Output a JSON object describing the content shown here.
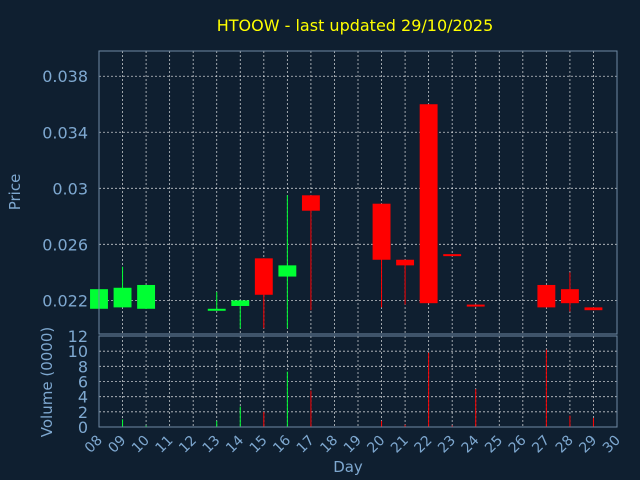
{
  "chart_data": {
    "type": "candlestick",
    "title": "HTOOW - last updated 29/10/2025",
    "xlabel": "Day",
    "ylabel": "Price",
    "volume_label": "Volume (0000)",
    "x_ticks": [
      "08",
      "09",
      "10",
      "11",
      "12",
      "13",
      "14",
      "15",
      "16",
      "17",
      "18",
      "19",
      "20",
      "21",
      "22",
      "23",
      "24",
      "25",
      "26",
      "27",
      "28",
      "29",
      "30"
    ],
    "xlim": [
      8,
      30
    ],
    "price_ylim": [
      0.0196,
      0.0398
    ],
    "price_ticks": [
      "0.022",
      "0.026",
      "0.03",
      "0.034",
      "0.038"
    ],
    "price_tick_values": [
      0.022,
      0.026,
      0.03,
      0.034,
      0.038
    ],
    "volume_ylim": [
      0,
      12
    ],
    "volume_ticks": [
      "0",
      "2",
      "4",
      "6",
      "8",
      "10",
      "12"
    ],
    "volume_tick_values": [
      0,
      2,
      4,
      6,
      8,
      10,
      12
    ],
    "grid": true,
    "colors": {
      "up": "#00ff33",
      "down": "#ff0000",
      "title": "#ffff00",
      "axis_text": "#7ea8d0",
      "background": "#0f1f30"
    },
    "candles": [
      {
        "day": 8,
        "open": 0.0214,
        "high": 0.0228,
        "low": 0.0214,
        "close": 0.0228,
        "volume": 0.3
      },
      {
        "day": 9,
        "open": 0.0215,
        "high": 0.0244,
        "low": 0.0215,
        "close": 0.0229,
        "volume": 1.0
      },
      {
        "day": 10,
        "open": 0.0214,
        "high": 0.0231,
        "low": 0.0214,
        "close": 0.0231,
        "volume": 0.2
      },
      {
        "day": 13,
        "open": 0.0213,
        "high": 0.0226,
        "low": 0.0213,
        "close": 0.0214,
        "volume": 0.8
      },
      {
        "day": 14,
        "open": 0.0216,
        "high": 0.022,
        "low": 0.02,
        "close": 0.022,
        "volume": 2.7
      },
      {
        "day": 15,
        "open": 0.025,
        "high": 0.025,
        "low": 0.02,
        "close": 0.0224,
        "volume": 2.0
      },
      {
        "day": 16,
        "open": 0.0237,
        "high": 0.0295,
        "low": 0.02,
        "close": 0.0245,
        "volume": 7.3
      },
      {
        "day": 17,
        "open": 0.0295,
        "high": 0.0295,
        "low": 0.0213,
        "close": 0.0284,
        "volume": 4.8
      },
      {
        "day": 20,
        "open": 0.0289,
        "high": 0.0289,
        "low": 0.0215,
        "close": 0.0249,
        "volume": 0.8
      },
      {
        "day": 21,
        "open": 0.0249,
        "high": 0.0249,
        "low": 0.0217,
        "close": 0.0245,
        "volume": 0.3
      },
      {
        "day": 22,
        "open": 0.036,
        "high": 0.036,
        "low": 0.0218,
        "close": 0.0218,
        "volume": 9.8
      },
      {
        "day": 23,
        "open": 0.0253,
        "high": 0.0253,
        "low": 0.0252,
        "close": 0.0252,
        "volume": 0.2
      },
      {
        "day": 24,
        "open": 0.0217,
        "high": 0.0217,
        "low": 0.0216,
        "close": 0.0216,
        "volume": 5.0
      },
      {
        "day": 27,
        "open": 0.0231,
        "high": 0.0231,
        "low": 0.0215,
        "close": 0.0215,
        "volume": 10.2
      },
      {
        "day": 28,
        "open": 0.0228,
        "high": 0.024,
        "low": 0.0212,
        "close": 0.0218,
        "volume": 1.5
      },
      {
        "day": 29,
        "open": 0.0215,
        "high": 0.0215,
        "low": 0.0213,
        "close": 0.0213,
        "volume": 1.2
      }
    ]
  }
}
